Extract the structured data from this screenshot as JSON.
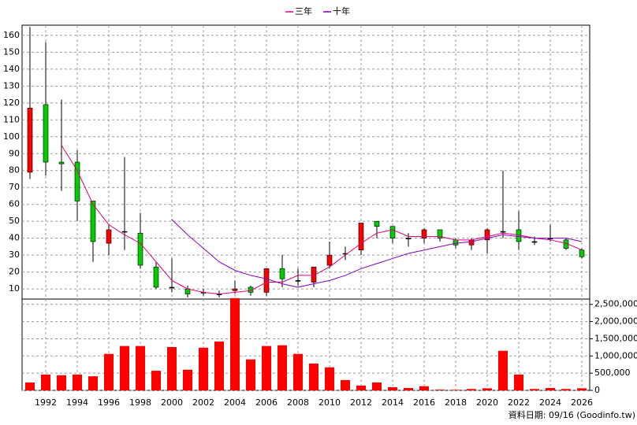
{
  "chart_data": [
    {
      "type": "candlestick",
      "categories": [
        null,
        "1992",
        null,
        "1994",
        null,
        "1996",
        null,
        "1998",
        null,
        "2000",
        null,
        "2002",
        null,
        "2004",
        null,
        "2006",
        null,
        "2008",
        null,
        "2010",
        null,
        "2012",
        null,
        "2014",
        null,
        "2016",
        null,
        "2018",
        null,
        "2020",
        null,
        "2022",
        null,
        "2024",
        null,
        "2026"
      ],
      "open": [
        79,
        119,
        85,
        85,
        62,
        37,
        44,
        43,
        23,
        11,
        10,
        8,
        7,
        9,
        11,
        8,
        22,
        15,
        14,
        24,
        31,
        33,
        50,
        47,
        40,
        40,
        45,
        39,
        36,
        39,
        44,
        45,
        38,
        40,
        39,
        33
      ],
      "high": [
        165,
        156,
        122,
        92,
        62,
        48,
        88,
        55,
        26,
        28,
        12,
        10,
        9,
        15,
        12,
        22,
        30,
        22,
        23,
        38,
        35,
        49,
        50,
        47,
        43,
        46,
        45,
        40,
        40,
        46,
        80,
        56,
        41,
        48,
        40,
        34
      ],
      "low": [
        75,
        77,
        68,
        50,
        26,
        30,
        33,
        22,
        10,
        8,
        5,
        6,
        5,
        7,
        6,
        6,
        11,
        12,
        11,
        22,
        27,
        30,
        40,
        37,
        35,
        37,
        38,
        34,
        33,
        31,
        40,
        33,
        36,
        38,
        33,
        28
      ],
      "close": [
        117,
        85,
        84,
        62,
        38,
        45,
        44,
        24,
        11,
        11,
        7,
        8,
        7,
        10,
        8,
        22,
        16,
        15,
        23,
        30,
        31,
        49,
        47,
        40,
        40,
        45,
        40,
        36,
        39,
        45,
        44,
        38,
        38,
        40,
        34,
        29
      ],
      "up_color": "#ff0000",
      "down_color": "#00cc00",
      "series": [
        {
          "name": "三年",
          "color": "#e0007a",
          "values": [
            null,
            null,
            95,
            80,
            60,
            48,
            42,
            37,
            26,
            15,
            10,
            8,
            7,
            8,
            9,
            14,
            14,
            18,
            18,
            23,
            30,
            37,
            43,
            45,
            41,
            41,
            41,
            39,
            39,
            41,
            43,
            42,
            40,
            39,
            37,
            33
          ]
        },
        {
          "name": "十年",
          "color": "#8000c0",
          "values": [
            null,
            null,
            null,
            null,
            null,
            null,
            null,
            null,
            null,
            51,
            42,
            34,
            26,
            21,
            18,
            16,
            13,
            11,
            13,
            15,
            18,
            22,
            25,
            28,
            31,
            33,
            35,
            37,
            38,
            40,
            42,
            41,
            40,
            40,
            40,
            38
          ]
        }
      ],
      "ylim": [
        4,
        166
      ],
      "yticks": [
        10,
        20,
        30,
        40,
        50,
        60,
        70,
        80,
        90,
        100,
        110,
        120,
        130,
        140,
        150,
        160
      ],
      "grid": true
    },
    {
      "type": "bar",
      "color": "#ff0000",
      "values": [
        230000,
        460000,
        440000,
        460000,
        410000,
        1060000,
        1290000,
        1290000,
        570000,
        1260000,
        600000,
        1240000,
        1420000,
        2680000,
        900000,
        1290000,
        1310000,
        1060000,
        780000,
        670000,
        300000,
        140000,
        230000,
        90000,
        70000,
        120000,
        20000,
        15000,
        40000,
        60000,
        1150000,
        460000,
        40000,
        70000,
        40000,
        60000
      ],
      "ylim": [
        0,
        2700000
      ],
      "yticks": [
        0,
        {
          "value": 500000,
          "label": "500,000"
        },
        {
          "value": 1000000,
          "label": "1,000,000"
        },
        {
          "value": 1500000,
          "label": "1,500,000"
        },
        {
          "value": 2000000,
          "label": "2,000,000"
        },
        {
          "value": 2500000,
          "label": "2,500,000"
        }
      ],
      "grid": true
    }
  ],
  "footer": "資料日期: 09/16 (Goodinfo.tw)"
}
